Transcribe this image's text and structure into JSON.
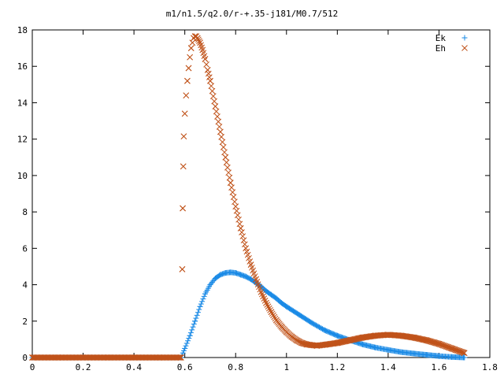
{
  "chart_data": {
    "type": "scatter",
    "title": "m1/n1.5/q2.0/r-+.35-j181/M0.7/512",
    "xlabel": "",
    "ylabel": "",
    "xlim": [
      0,
      1.8
    ],
    "ylim": [
      0,
      18
    ],
    "x_ticks": [
      "0",
      "0.2",
      "0.4",
      "0.6",
      "0.8",
      "1",
      "1.2",
      "1.4",
      "1.6",
      "1.8"
    ],
    "y_ticks": [
      "0",
      "2",
      "4",
      "6",
      "8",
      "10",
      "12",
      "14",
      "16",
      "18"
    ],
    "grid": false,
    "legend_position": "top-right",
    "series": [
      {
        "name": "Ek",
        "marker": "plus",
        "color": "#1a8ae6",
        "x": [
          0.0,
          0.1,
          0.2,
          0.3,
          0.4,
          0.5,
          0.585,
          0.6,
          0.62,
          0.64,
          0.66,
          0.68,
          0.7,
          0.72,
          0.74,
          0.76,
          0.78,
          0.8,
          0.82,
          0.84,
          0.86,
          0.88,
          0.9,
          0.92,
          0.94,
          0.96,
          0.98,
          1.0,
          1.05,
          1.1,
          1.15,
          1.2,
          1.25,
          1.3,
          1.35,
          1.4,
          1.45,
          1.5,
          1.55,
          1.6,
          1.65,
          1.7
        ],
        "y": [
          0,
          0,
          0,
          0,
          0,
          0,
          0,
          0.5,
          1.2,
          2.0,
          2.8,
          3.5,
          4.0,
          4.35,
          4.55,
          4.65,
          4.68,
          4.65,
          4.55,
          4.45,
          4.3,
          4.1,
          3.9,
          3.65,
          3.45,
          3.25,
          3.0,
          2.8,
          2.35,
          1.9,
          1.5,
          1.2,
          0.95,
          0.72,
          0.55,
          0.42,
          0.3,
          0.22,
          0.15,
          0.08,
          0.03,
          0.0
        ]
      },
      {
        "name": "Eh",
        "marker": "cross",
        "color": "#c0531a",
        "x": [
          0.0,
          0.1,
          0.2,
          0.3,
          0.4,
          0.5,
          0.585,
          0.59,
          0.592,
          0.594,
          0.596,
          0.6,
          0.605,
          0.61,
          0.615,
          0.62,
          0.625,
          0.63,
          0.635,
          0.64,
          0.645,
          0.65,
          0.66,
          0.67,
          0.68,
          0.69,
          0.7,
          0.72,
          0.74,
          0.76,
          0.78,
          0.8,
          0.82,
          0.84,
          0.86,
          0.88,
          0.9,
          0.92,
          0.94,
          0.96,
          0.98,
          1.0,
          1.02,
          1.04,
          1.06,
          1.08,
          1.1,
          1.12,
          1.15,
          1.2,
          1.25,
          1.3,
          1.35,
          1.4,
          1.45,
          1.5,
          1.55,
          1.6,
          1.65,
          1.7
        ],
        "y": [
          0,
          0,
          0,
          0,
          0,
          0,
          0,
          4.85,
          8.2,
          10.5,
          12.15,
          13.4,
          14.4,
          15.2,
          15.9,
          16.5,
          17.0,
          17.3,
          17.55,
          17.65,
          17.65,
          17.55,
          17.3,
          16.9,
          16.4,
          15.8,
          15.2,
          13.8,
          12.4,
          11.0,
          9.6,
          8.3,
          7.1,
          6.0,
          5.1,
          4.3,
          3.6,
          3.0,
          2.5,
          2.05,
          1.7,
          1.4,
          1.15,
          0.95,
          0.8,
          0.72,
          0.68,
          0.65,
          0.7,
          0.8,
          0.95,
          1.1,
          1.2,
          1.25,
          1.2,
          1.1,
          0.95,
          0.75,
          0.5,
          0.25
        ]
      }
    ]
  }
}
